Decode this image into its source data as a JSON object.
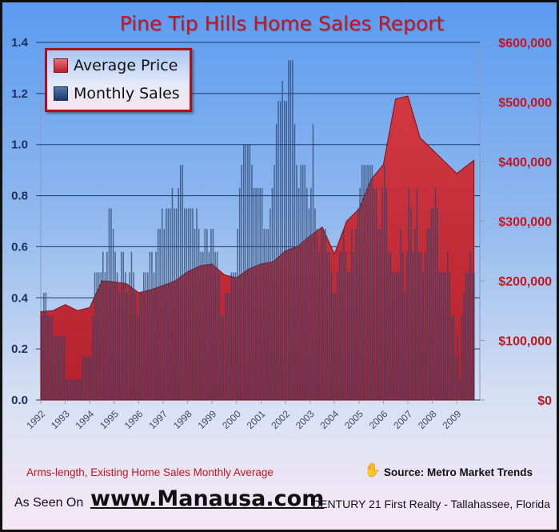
{
  "chart_data": {
    "type": "bar+area",
    "title": "Pine Tip Hills Home Sales Report",
    "legend": {
      "placement": "top-left",
      "entries": [
        "Average Price",
        "Monthly Sales"
      ]
    },
    "y_left": {
      "ticks": [
        "0.0",
        "0.2",
        "0.4",
        "0.6",
        "0.8",
        "1.0",
        "1.2",
        "1.4"
      ],
      "range": [
        0,
        1.4
      ]
    },
    "y_right": {
      "ticks": [
        "$0",
        "$100,000",
        "$200,000",
        "$300,000",
        "$400,000",
        "$500,000",
        "$600,000"
      ],
      "range": [
        0,
        600000
      ]
    },
    "x_ticks": [
      "1992",
      "1993",
      "1994",
      "1995",
      "1996",
      "1997",
      "1998",
      "1999",
      "2000",
      "2001",
      "2002",
      "2003",
      "2004",
      "2005",
      "2006",
      "2007",
      "2008",
      "2009"
    ],
    "grid": true,
    "series": [
      {
        "name": "Monthly Sales",
        "type": "bar",
        "axis": "left",
        "start": "1992-01",
        "frequency": "monthly",
        "values": [
          0.33,
          0.42,
          0.42,
          0.33,
          0.33,
          0.33,
          0.25,
          0.25,
          0.25,
          0.25,
          0.25,
          0.25,
          0.08,
          0.08,
          0.08,
          0.08,
          0.08,
          0.08,
          0.08,
          0.08,
          0.17,
          0.17,
          0.17,
          0.17,
          0.17,
          0.33,
          0.5,
          0.5,
          0.5,
          0.5,
          0.58,
          0.5,
          0.58,
          0.75,
          0.75,
          0.67,
          0.58,
          0.5,
          0.42,
          0.58,
          0.58,
          0.5,
          0.42,
          0.5,
          0.58,
          0.5,
          0.42,
          0.33,
          0.42,
          0.42,
          0.5,
          0.5,
          0.5,
          0.58,
          0.58,
          0.5,
          0.58,
          0.67,
          0.67,
          0.75,
          0.67,
          0.75,
          0.75,
          0.75,
          0.83,
          0.75,
          0.75,
          0.83,
          0.92,
          0.92,
          0.75,
          0.75,
          0.75,
          0.75,
          0.75,
          0.67,
          0.75,
          0.67,
          0.58,
          0.58,
          0.67,
          0.67,
          0.58,
          0.67,
          0.67,
          0.58,
          0.58,
          0.5,
          0.33,
          0.33,
          0.42,
          0.42,
          0.42,
          0.5,
          0.5,
          0.5,
          0.67,
          0.83,
          0.92,
          1.0,
          1.0,
          1.0,
          1.0,
          0.92,
          0.83,
          0.83,
          0.83,
          0.83,
          0.83,
          0.67,
          0.67,
          0.67,
          0.75,
          0.83,
          0.92,
          1.08,
          1.17,
          1.17,
          1.25,
          1.17,
          1.17,
          1.33,
          1.33,
          1.33,
          1.08,
          0.92,
          0.83,
          0.92,
          0.92,
          0.92,
          0.83,
          0.75,
          0.83,
          1.08,
          0.75,
          0.67,
          0.58,
          0.67,
          0.67,
          0.67,
          0.58,
          0.58,
          0.5,
          0.42,
          0.42,
          0.5,
          0.58,
          0.58,
          0.67,
          0.58,
          0.5,
          0.5,
          0.67,
          0.58,
          0.67,
          0.75,
          0.83,
          0.92,
          0.92,
          0.92,
          0.92,
          0.92,
          0.92,
          0.83,
          0.83,
          0.67,
          0.67,
          0.83,
          0.92,
          0.83,
          0.58,
          0.58,
          0.5,
          0.5,
          0.5,
          0.5,
          0.67,
          0.58,
          0.42,
          0.58,
          0.83,
          0.75,
          0.58,
          0.67,
          0.83,
          0.58,
          0.58,
          0.5,
          0.58,
          0.67,
          0.67,
          0.75,
          0.75,
          0.83,
          0.75,
          0.5,
          0.5,
          0.5,
          0.5,
          0.58,
          0.5,
          0.33,
          0.33,
          0.17,
          0.25,
          0.08,
          0.33,
          0.42,
          0.5,
          0.5,
          0.58,
          0.5,
          0.5
        ]
      },
      {
        "name": "Average Price",
        "type": "area",
        "axis": "right",
        "points": [
          [
            1992.0,
            148000
          ],
          [
            1992.5,
            150000
          ],
          [
            1993.0,
            160000
          ],
          [
            1993.5,
            150000
          ],
          [
            1994.0,
            155000
          ],
          [
            1994.5,
            200000
          ],
          [
            1995.0,
            198000
          ],
          [
            1995.5,
            195000
          ],
          [
            1996.0,
            180000
          ],
          [
            1996.5,
            185000
          ],
          [
            1997.0,
            192000
          ],
          [
            1997.5,
            200000
          ],
          [
            1998.0,
            215000
          ],
          [
            1998.5,
            225000
          ],
          [
            1999.0,
            228000
          ],
          [
            1999.5,
            210000
          ],
          [
            2000.0,
            205000
          ],
          [
            2000.5,
            220000
          ],
          [
            2001.0,
            228000
          ],
          [
            2001.5,
            232000
          ],
          [
            2002.0,
            250000
          ],
          [
            2002.5,
            258000
          ],
          [
            2003.0,
            275000
          ],
          [
            2003.5,
            290000
          ],
          [
            2004.0,
            245000
          ],
          [
            2004.5,
            300000
          ],
          [
            2005.0,
            320000
          ],
          [
            2005.5,
            370000
          ],
          [
            2006.0,
            395000
          ],
          [
            2006.5,
            505000
          ],
          [
            2007.0,
            510000
          ],
          [
            2007.5,
            440000
          ],
          [
            2008.0,
            420000
          ],
          [
            2008.5,
            400000
          ],
          [
            2009.0,
            380000
          ],
          [
            2009.7,
            402000
          ]
        ]
      }
    ],
    "colors": {
      "price": "#c8303a",
      "sales": "#2c4470",
      "grid": "#1c3a6e",
      "left_axis_text": "#1c2f5e",
      "right_axis_text": "#c4161c"
    }
  },
  "footer": {
    "note": "Arms-length, Existing Home Sales Monthly Average",
    "source": "Source: Metro Market Trends",
    "seen_on": "As Seen On",
    "site": "www.Manausa.com",
    "firm": "CENTURY 21 First Realty - Tallahassee, Florida"
  }
}
